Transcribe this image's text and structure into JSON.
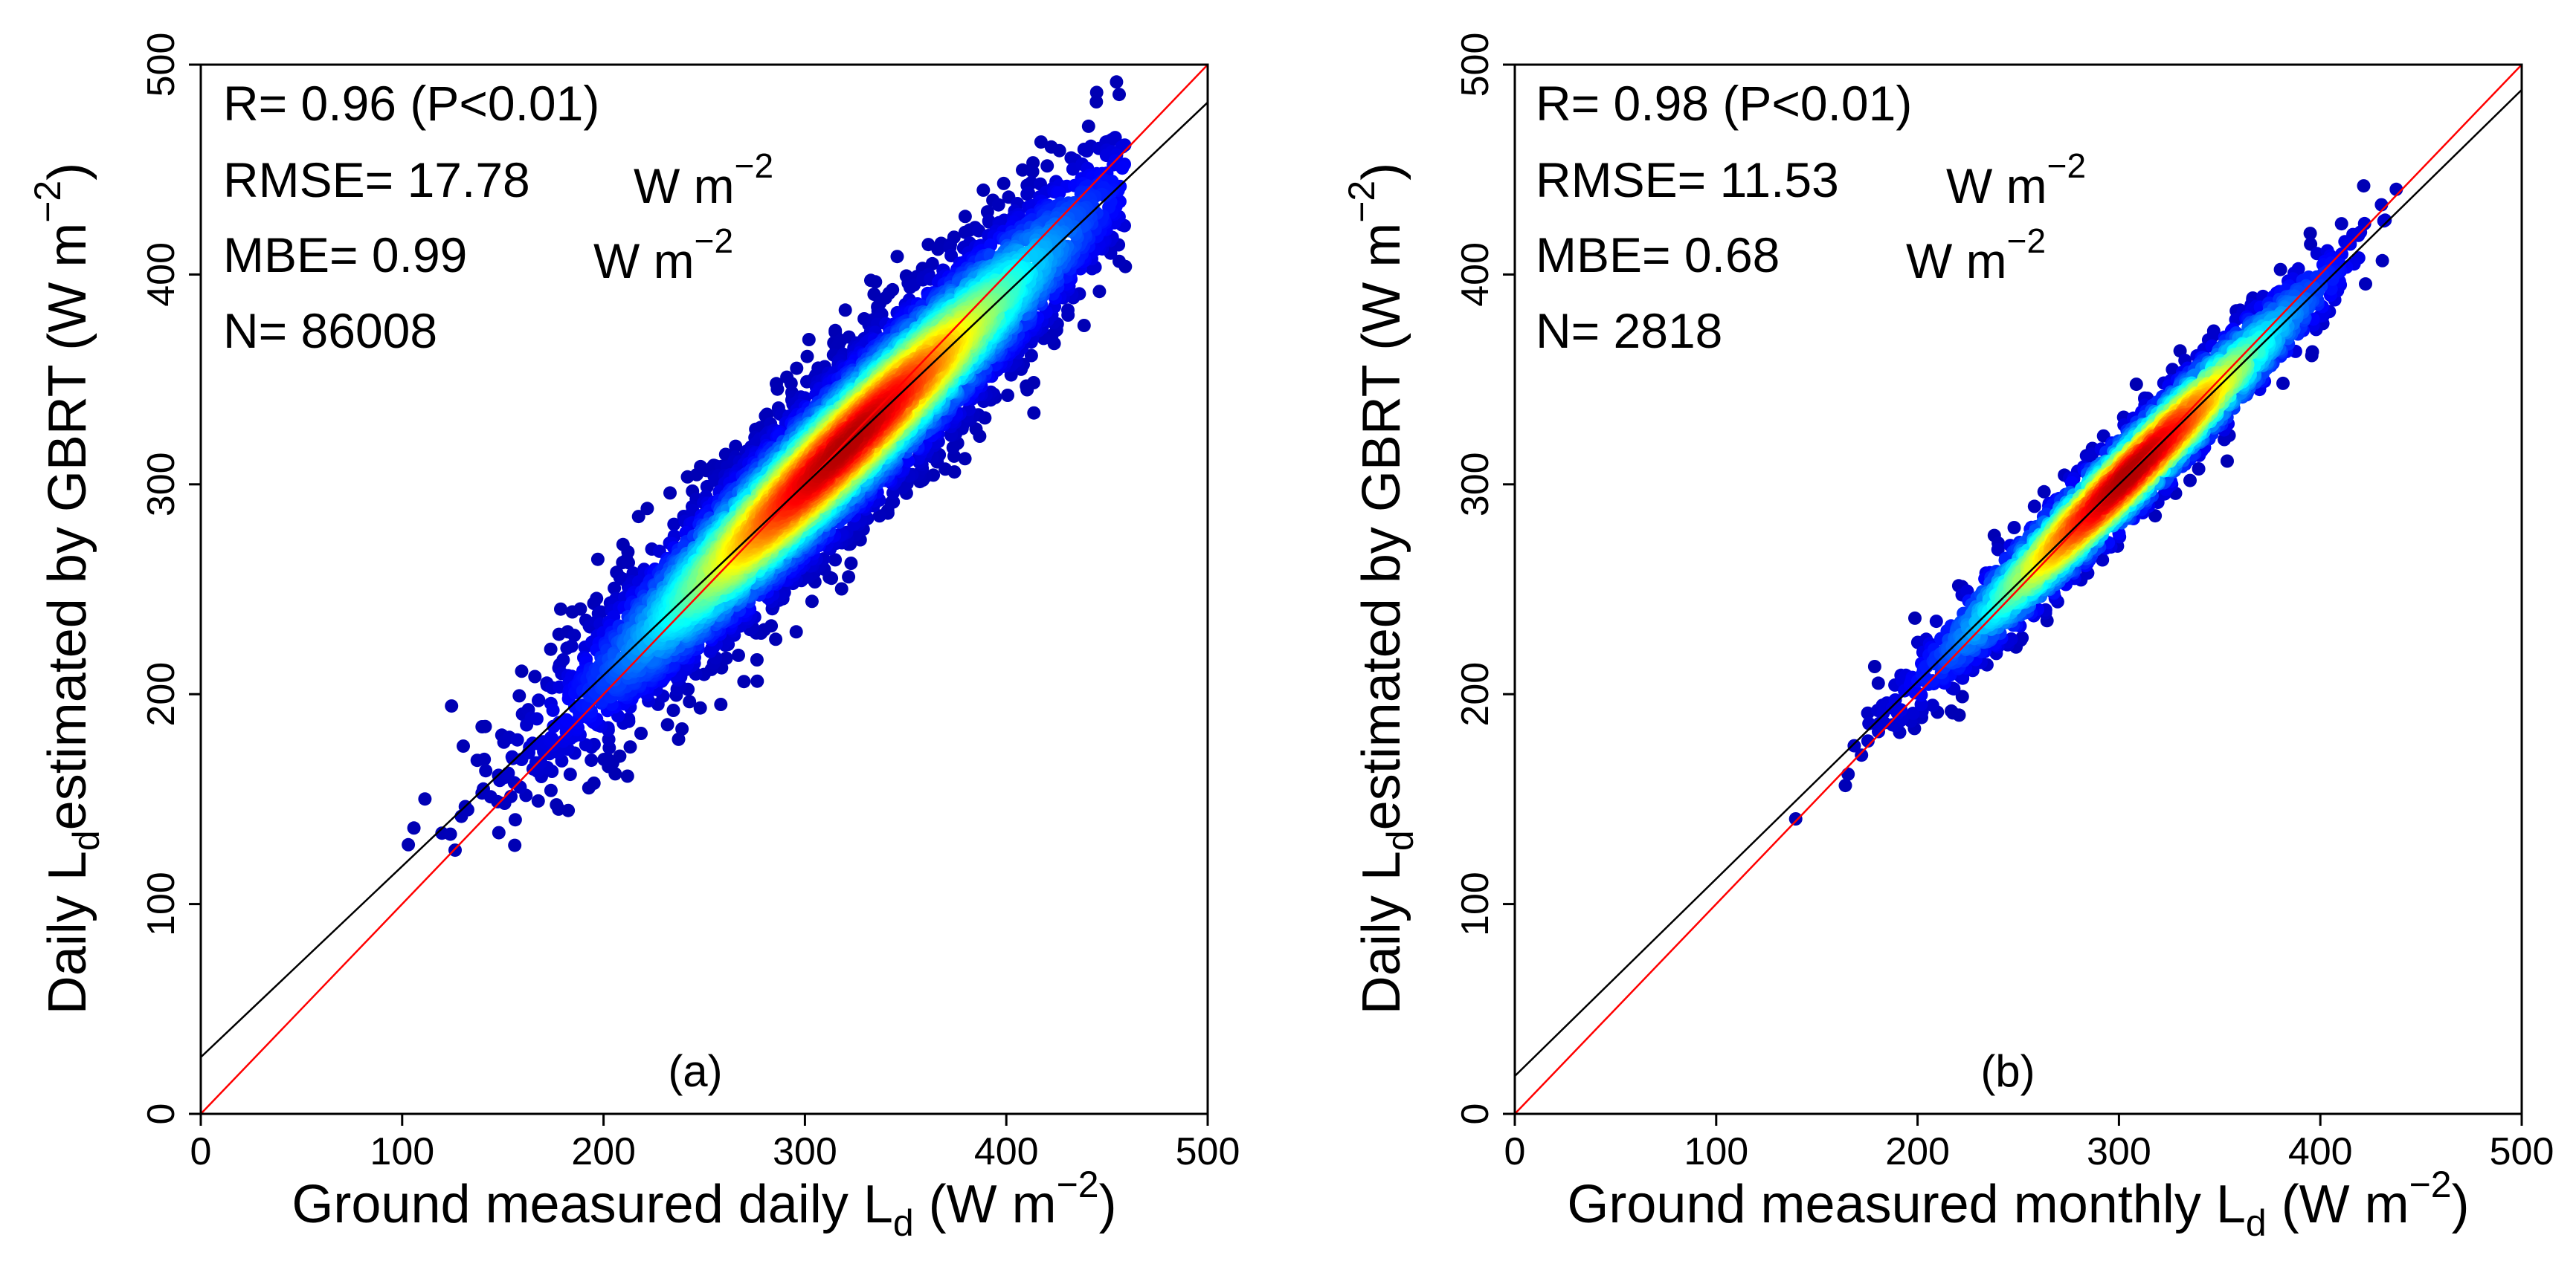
{
  "chart_data": [
    {
      "type": "scatter",
      "panel_label": "(a)",
      "title": "",
      "xlabel": {
        "pre": "Ground measured daily L",
        "sub": "d",
        "post": " (W m",
        "sup": "−2",
        "close": ")"
      },
      "ylabel": {
        "pre": "Daily L",
        "sub": "d",
        "post": "estimated by GBRT (W m",
        "sup": "−2",
        "close": ")"
      },
      "xlim": [
        0,
        500
      ],
      "ylim": [
        0,
        500
      ],
      "xticks": [
        "0",
        "100",
        "200",
        "300",
        "400",
        "500"
      ],
      "yticks": [
        "0",
        "100",
        "200",
        "300",
        "400",
        "500"
      ],
      "stats": {
        "r": "R= 0.96 (P<0.01)",
        "rmse": "RMSE= 17.78",
        "rmse_unit": "W m",
        "rmse_sup": "−2",
        "mbe": "MBE= 0.99",
        "mbe_unit": "W m",
        "mbe_sup": "−2",
        "n": "N= 86008"
      },
      "n_points": 86008,
      "fit_line": {
        "slope": 0.91,
        "intercept": 27
      },
      "identity_line": {
        "slope": 1,
        "intercept": 0
      },
      "cloud": {
        "x_range": [
          88,
          460
        ],
        "center": [
          320,
          318
        ],
        "residual_sd": 17.78
      },
      "colors": {
        "fit": "#000000",
        "identity": "#ff0000"
      }
    },
    {
      "type": "scatter",
      "panel_label": "(b)",
      "title": "",
      "xlabel": {
        "pre": "Ground measured monthly L",
        "sub": "d",
        "post": " (W m",
        "sup": "−2",
        "close": ")"
      },
      "ylabel": {
        "pre": "Daily L",
        "sub": "d",
        "post": "estimated by GBRT (W m",
        "sup": "−2",
        "close": ")"
      },
      "xlim": [
        0,
        500
      ],
      "ylim": [
        0,
        500
      ],
      "xticks": [
        "0",
        "100",
        "200",
        "300",
        "400",
        "500"
      ],
      "yticks": [
        "0",
        "100",
        "200",
        "300",
        "400",
        "500"
      ],
      "stats": {
        "r": "R= 0.98 (P<0.01)",
        "rmse": "RMSE= 11.53",
        "rmse_unit": "W m",
        "rmse_sup": "−2",
        "mbe": "MBE= 0.68",
        "mbe_unit": "W m",
        "mbe_sup": "−2",
        "n": "N= 2818"
      },
      "n_points": 2818,
      "fit_line": {
        "slope": 0.94,
        "intercept": 18
      },
      "identity_line": {
        "slope": 1,
        "intercept": 0
      },
      "cloud": {
        "x_range": [
          128,
          438
        ],
        "center": [
          305,
          305
        ],
        "residual_sd": 11.53
      },
      "colors": {
        "fit": "#000000",
        "identity": "#ff0000"
      }
    }
  ]
}
